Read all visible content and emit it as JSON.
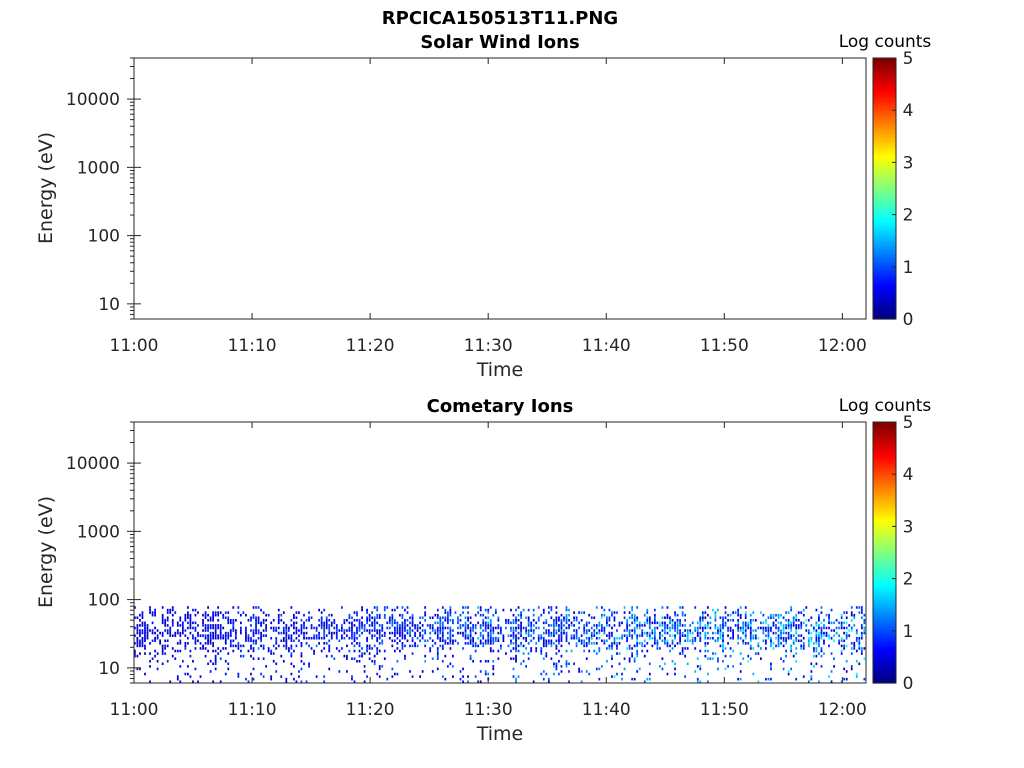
{
  "figure_title": "RPCICA150513T11.PNG",
  "colormap": "jet",
  "chart_data": [
    {
      "type": "heatmap",
      "title": "Solar Wind Ions",
      "xlabel": "Time",
      "ylabel": "Energy (eV)",
      "x_range": [
        "11:00",
        "12:02"
      ],
      "x_ticks": [
        "11:00",
        "11:10",
        "11:20",
        "11:30",
        "11:40",
        "11:50",
        "12:00"
      ],
      "y_scale": "log",
      "y_range": [
        6,
        40000
      ],
      "y_ticks": [
        10,
        100,
        1000,
        10000
      ],
      "y_tick_labels": [
        "10",
        "100",
        "1000",
        "10000"
      ],
      "colorbar": {
        "label": "Log counts",
        "range": [
          0,
          5
        ],
        "ticks": [
          "0",
          "1",
          "2",
          "3",
          "4",
          "5"
        ]
      },
      "data_description_values": {
        "max_energy_ev": null,
        "activity": "none"
      }
    },
    {
      "type": "heatmap",
      "title": "Cometary Ions",
      "xlabel": "Time",
      "ylabel": "Energy (eV)",
      "x_range": [
        "11:00",
        "12:02"
      ],
      "x_ticks": [
        "11:00",
        "11:10",
        "11:20",
        "11:30",
        "11:40",
        "11:50",
        "12:00"
      ],
      "y_scale": "log",
      "y_range": [
        6,
        40000
      ],
      "y_ticks": [
        10,
        100,
        1000,
        10000
      ],
      "y_tick_labels": [
        "10",
        "100",
        "1000",
        "10000"
      ],
      "colorbar": {
        "label": "Log counts",
        "range": [
          0,
          5
        ],
        "ticks": [
          "0",
          "1",
          "2",
          "3",
          "4",
          "5"
        ]
      },
      "data_description_values": {
        "max_energy_ev": 80,
        "activity": "low counts 6-80 eV throughout"
      }
    }
  ]
}
